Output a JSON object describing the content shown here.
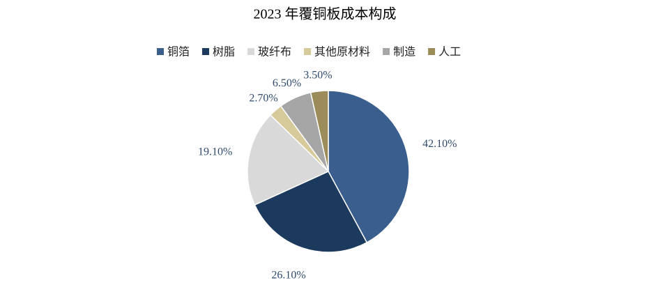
{
  "chart_data": {
    "type": "pie",
    "title": "2023 年覆铜板成本构成",
    "categories": [
      "铜箔",
      "树脂",
      "玻纤布",
      "其他原材料",
      "制造",
      "人工"
    ],
    "values": [
      42.1,
      26.1,
      19.1,
      2.7,
      6.5,
      3.5
    ],
    "value_labels": [
      "42.10%",
      "26.10%",
      "19.10%",
      "2.70%",
      "6.50%",
      "3.50%"
    ],
    "colors": [
      "#3a5f8f",
      "#1c3a5e",
      "#d9d9d9",
      "#d6c99a",
      "#a6a6a6",
      "#9c8c5a"
    ],
    "legend": "top"
  }
}
